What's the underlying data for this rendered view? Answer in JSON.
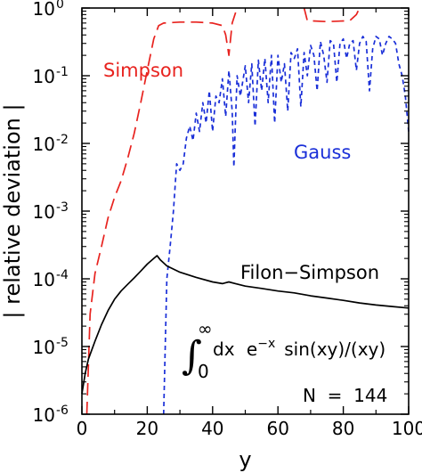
{
  "chart_data": {
    "type": "line",
    "title": "",
    "xlabel": "y",
    "ylabel": "| relative deviation |",
    "x_scale": "linear",
    "y_scale": "log",
    "xlim": [
      0,
      100
    ],
    "ylim": [
      1e-06,
      1
    ],
    "x_ticks": [
      {
        "value": 0,
        "label": "0"
      },
      {
        "value": 20,
        "label": "20"
      },
      {
        "value": 40,
        "label": "40"
      },
      {
        "value": 60,
        "label": "60"
      },
      {
        "value": 80,
        "label": "80"
      },
      {
        "value": 100,
        "label": "100"
      }
    ],
    "y_ticks": [
      {
        "value": 1e-06,
        "base": "10",
        "exp": "-6"
      },
      {
        "value": 1e-05,
        "base": "10",
        "exp": "-5"
      },
      {
        "value": 0.0001,
        "base": "10",
        "exp": "-4"
      },
      {
        "value": 0.001,
        "base": "10",
        "exp": "-3"
      },
      {
        "value": 0.01,
        "base": "10",
        "exp": "-2"
      },
      {
        "value": 0.1,
        "base": "10",
        "exp": "-1"
      },
      {
        "value": 1,
        "base": "10",
        "exp": "0"
      }
    ],
    "grid": false,
    "legend": "none",
    "series": [
      {
        "name": "Simpson",
        "color": "#e8231f",
        "dash": "long-dash",
        "segments": [
          [
            [
              1.5,
              1e-06
            ],
            [
              2.5,
              3e-05
            ],
            [
              4,
              0.00012
            ],
            [
              6,
              0.0003
            ],
            [
              8,
              0.0008
            ],
            [
              10,
              0.0016
            ],
            [
              12,
              0.0028
            ],
            [
              14,
              0.006
            ],
            [
              16,
              0.014
            ],
            [
              18,
              0.04
            ],
            [
              20,
              0.12
            ],
            [
              22,
              0.35
            ],
            [
              23.5,
              0.55
            ],
            [
              25,
              0.6
            ],
            [
              30,
              0.62
            ],
            [
              35,
              0.62
            ],
            [
              40,
              0.6
            ],
            [
              43,
              0.55
            ],
            [
              44,
              0.4
            ],
            [
              45,
              0.2
            ],
            [
              46,
              0.6
            ],
            [
              47.5,
              1
            ]
          ],
          [
            [
              68,
              1
            ],
            [
              69,
              0.65
            ],
            [
              75,
              0.63
            ],
            [
              82,
              0.65
            ],
            [
              84,
              0.8
            ],
            [
              85,
              1
            ]
          ]
        ]
      },
      {
        "name": "Gauss",
        "color": "#1a2fd8",
        "dash": "short-dash",
        "segments": [
          [
            [
              25,
              1e-06
            ],
            [
              25.5,
              1e-05
            ],
            [
              26,
              0.0001
            ],
            [
              27,
              0.0003
            ],
            [
              28,
              0.001
            ],
            [
              29,
              0.005
            ],
            [
              30,
              0.004
            ],
            [
              31,
              0.005
            ],
            [
              32,
              0.012
            ],
            [
              33,
              0.018
            ],
            [
              34,
              0.011
            ],
            [
              35,
              0.028
            ],
            [
              36,
              0.015
            ],
            [
              37,
              0.04
            ],
            [
              38,
              0.02
            ],
            [
              39,
              0.06
            ],
            [
              40,
              0.015
            ],
            [
              41,
              0.05
            ],
            [
              42,
              0.04
            ],
            [
              43,
              0.09
            ],
            [
              44,
              0.025
            ],
            [
              45,
              0.12
            ],
            [
              46,
              0.03
            ],
            [
              46.5,
              0.0045
            ],
            [
              47.5,
              0.1
            ],
            [
              48.5,
              0.05
            ],
            [
              50,
              0.14
            ],
            [
              51,
              0.04
            ],
            [
              52,
              0.15
            ],
            [
              53,
              0.018
            ],
            [
              54,
              0.17
            ],
            [
              55,
              0.06
            ],
            [
              56,
              0.18
            ],
            [
              57,
              0.04
            ],
            [
              58,
              0.2
            ],
            [
              59,
              0.02
            ],
            [
              60,
              0.2
            ],
            [
              61,
              0.08
            ],
            [
              62,
              0.15
            ],
            [
              63,
              0.03
            ],
            [
              64,
              0.22
            ],
            [
              65,
              0.18
            ],
            [
              66,
              0.25
            ],
            [
              67,
              0.035
            ],
            [
              68,
              0.22
            ],
            [
              69,
              0.1
            ],
            [
              70,
              0.28
            ],
            [
              71,
              0.2
            ],
            [
              72,
              0.06
            ],
            [
              73,
              0.32
            ],
            [
              74,
              0.2
            ],
            [
              75,
              0.08
            ],
            [
              76,
              0.33
            ],
            [
              77,
              0.3
            ],
            [
              78,
              0.08
            ],
            [
              79,
              0.3
            ],
            [
              80,
              0.35
            ],
            [
              81,
              0.18
            ],
            [
              82,
              0.3
            ],
            [
              83,
              0.33
            ],
            [
              84,
              0.12
            ],
            [
              85,
              0.3
            ],
            [
              86,
              0.38
            ],
            [
              87,
              0.32
            ],
            [
              88,
              0.06
            ],
            [
              89,
              0.25
            ],
            [
              90,
              0.38
            ],
            [
              91,
              0.35
            ],
            [
              92,
              0.2
            ],
            [
              93,
              0.3
            ],
            [
              94,
              0.38
            ],
            [
              95,
              0.35
            ],
            [
              96,
              0.3
            ],
            [
              97,
              0.15
            ],
            [
              98,
              0.1
            ],
            [
              99,
              0.05
            ],
            [
              100,
              0.015
            ]
          ]
        ]
      },
      {
        "name": "Filon−Simpson",
        "color": "#000000",
        "dash": "solid",
        "segments": [
          [
            [
              0,
              2e-06
            ],
            [
              1,
              4e-06
            ],
            [
              2,
              6.5e-06
            ],
            [
              4,
              1.2e-05
            ],
            [
              6,
              2.1e-05
            ],
            [
              8,
              3.4e-05
            ],
            [
              10,
              5e-05
            ],
            [
              12,
              6.6e-05
            ],
            [
              14,
              8.3e-05
            ],
            [
              16,
              0.000103
            ],
            [
              18,
              0.00013
            ],
            [
              20,
              0.000165
            ],
            [
              22,
              0.0002
            ],
            [
              23,
              0.00022
            ],
            [
              24,
              0.00019
            ],
            [
              26,
              0.000155
            ],
            [
              30,
              0.000125
            ],
            [
              35,
              0.000105
            ],
            [
              40,
              9e-05
            ],
            [
              43,
              8.5e-05
            ],
            [
              45,
              9e-05
            ],
            [
              47,
              8.5e-05
            ],
            [
              50,
              7.8e-05
            ],
            [
              55,
              7.2e-05
            ],
            [
              60,
              6.6e-05
            ],
            [
              65,
              6.2e-05
            ],
            [
              70,
              5.6e-05
            ],
            [
              75,
              5.2e-05
            ],
            [
              80,
              4.8e-05
            ],
            [
              85,
              4.4e-05
            ],
            [
              90,
              4.1e-05
            ],
            [
              95,
              3.9e-05
            ],
            [
              100,
              3.7e-05
            ]
          ]
        ]
      }
    ],
    "annotations": {
      "simpson_label": "Simpson",
      "gauss_label": "Gauss",
      "filon_label": "Filon−Simpson",
      "integral": {
        "symbol": "∫",
        "upper": "∞",
        "lower": "0",
        "dx": "dx",
        "exp_base": "e",
        "exp_sup": "−x",
        "rest": "sin(xy)/(xy)"
      },
      "n_label": "N  =  144"
    }
  }
}
